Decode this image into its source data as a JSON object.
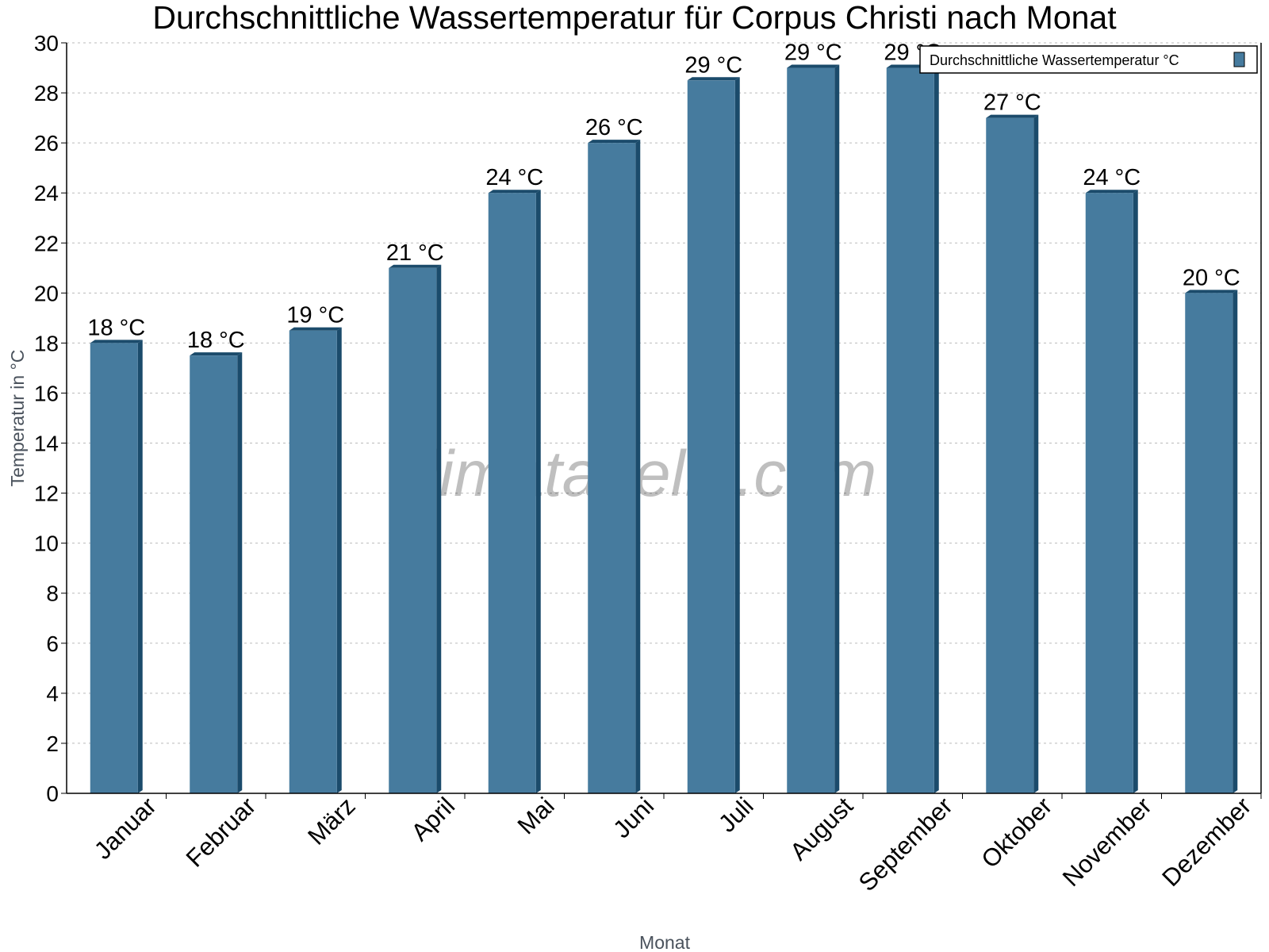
{
  "chart_data": {
    "type": "bar",
    "title": "Durchschnittliche Wassertemperatur für Corpus Christi nach Monat",
    "xlabel": "Monat",
    "ylabel": "Temperatur in °C",
    "categories": [
      "Januar",
      "Februar",
      "März",
      "April",
      "Mai",
      "Juni",
      "Juli",
      "August",
      "September",
      "Oktober",
      "November",
      "Dezember"
    ],
    "series": [
      {
        "name": "Durchschnittliche Wassertemperatur °C",
        "values": [
          18,
          17.5,
          18.5,
          21,
          24,
          26,
          28.5,
          29,
          29,
          27,
          24,
          20
        ],
        "labels": [
          "18 °C",
          "18 °C",
          "19 °C",
          "21 °C",
          "24 °C",
          "26 °C",
          "29 °C",
          "29 °C",
          "29 °C",
          "27 °C",
          "24 °C",
          "20 °C"
        ]
      }
    ],
    "ylim": [
      0,
      30
    ],
    "yticks": [
      0,
      2,
      4,
      6,
      8,
      10,
      12,
      14,
      16,
      18,
      20,
      22,
      24,
      26,
      28,
      30
    ],
    "grid": true,
    "legend": "top-right",
    "colors": {
      "bar": "#467b9e",
      "bar_side": "#1b4b6b"
    },
    "watermark": "klimatabelle.com"
  }
}
